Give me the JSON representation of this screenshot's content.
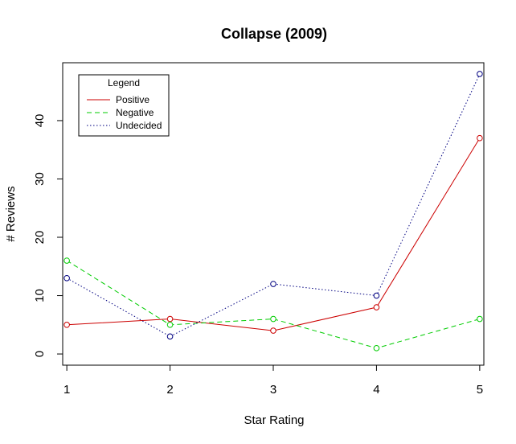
{
  "chart_data": {
    "type": "line",
    "title": "Collapse (2009)",
    "xlabel": "Star Rating",
    "ylabel": "# Reviews",
    "x": [
      1,
      2,
      3,
      4,
      5
    ],
    "xticks": [
      "1",
      "2",
      "3",
      "4",
      "5"
    ],
    "yticks": [
      "0",
      "10",
      "20",
      "30",
      "40"
    ],
    "xlim": [
      0.96,
      5.04
    ],
    "ylim": [
      -1.92,
      49.92
    ],
    "legend": {
      "title": "Legend",
      "position": "top-left"
    },
    "series": [
      {
        "name": "Positive",
        "values": [
          5,
          6,
          4,
          8,
          37
        ],
        "color": "#cc0000",
        "dash": "solid"
      },
      {
        "name": "Negative",
        "values": [
          16,
          5,
          6,
          1,
          6
        ],
        "color": "#00cc00",
        "dash": "dashed"
      },
      {
        "name": "Undecided",
        "values": [
          13,
          3,
          12,
          10,
          48
        ],
        "color": "#000080",
        "dash": "dotted"
      }
    ]
  }
}
